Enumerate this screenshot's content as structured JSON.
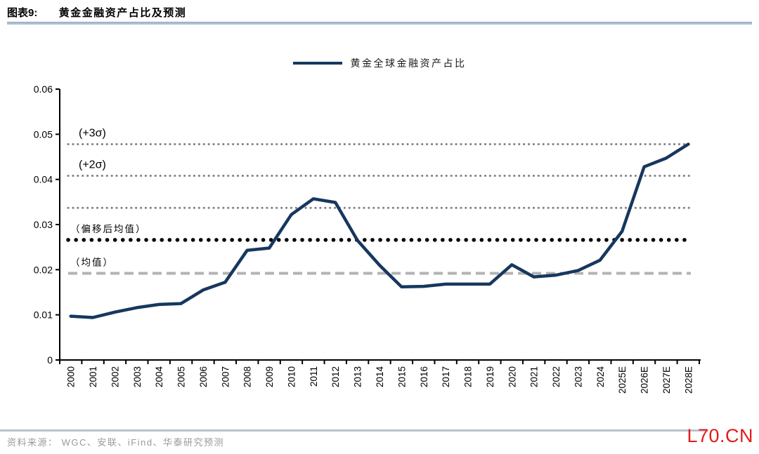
{
  "header": {
    "figure_label": "图表9:",
    "title": "黄金金融资产占比及预测"
  },
  "legend": {
    "series_label": "黄金全球金融资产占比"
  },
  "footer": {
    "source": "资料来源： WGC、安联、iFind、华泰研究预测",
    "watermark": "L70.CN"
  },
  "colors": {
    "series_line": "#17375e",
    "sigma_dotted": "#7f7f7f",
    "shifted_mean_dotted": "#000000",
    "mean_dashed": "#b3b3b3",
    "title_rule": "#aebdd3",
    "footer_rule": "#b9c2cf",
    "watermark_red": "#e31b1b",
    "axis": "#000000",
    "source_text": "#9a9a9a"
  },
  "chart_data": {
    "type": "line",
    "title": "黄金金融资产占比及预测",
    "categories": [
      "2000",
      "2001",
      "2002",
      "2003",
      "2004",
      "2005",
      "2006",
      "2007",
      "2008",
      "2009",
      "2010",
      "2011",
      "2012",
      "2013",
      "2014",
      "2015",
      "2016",
      "2017",
      "2018",
      "2019",
      "2020",
      "2021",
      "2022",
      "2023",
      "2024",
      "2025E",
      "2026E",
      "2027E",
      "2028E"
    ],
    "series": [
      {
        "name": "黄金全球金融资产占比",
        "color": "#17375e",
        "values": [
          0.0097,
          0.0094,
          0.0106,
          0.0116,
          0.0123,
          0.0125,
          0.0155,
          0.0172,
          0.0243,
          0.0248,
          0.0322,
          0.0357,
          0.0349,
          0.0265,
          0.021,
          0.0162,
          0.0163,
          0.0168,
          0.0168,
          0.0168,
          0.0211,
          0.0184,
          0.0188,
          0.0198,
          0.0221,
          0.0285,
          0.0428,
          0.0447,
          0.0478
        ]
      }
    ],
    "reference_lines": [
      {
        "label": "(+3σ)",
        "value": 0.0478,
        "style": "dotted_small",
        "color": "#7f7f7f"
      },
      {
        "label": "(+2σ)",
        "value": 0.0408,
        "style": "dotted_small",
        "color": "#7f7f7f"
      },
      {
        "label": "",
        "value": 0.0337,
        "style": "dotted_small",
        "color": "#7f7f7f"
      },
      {
        "label": "（偏移后均值）",
        "value": 0.0266,
        "style": "dotted_large",
        "color": "#000000"
      },
      {
        "label": "（均值）",
        "value": 0.0192,
        "style": "dashed",
        "color": "#b3b3b3"
      }
    ],
    "ylim": [
      0,
      0.06
    ],
    "ytick_step": 0.01,
    "grid": false,
    "legend_position": "top-center"
  }
}
